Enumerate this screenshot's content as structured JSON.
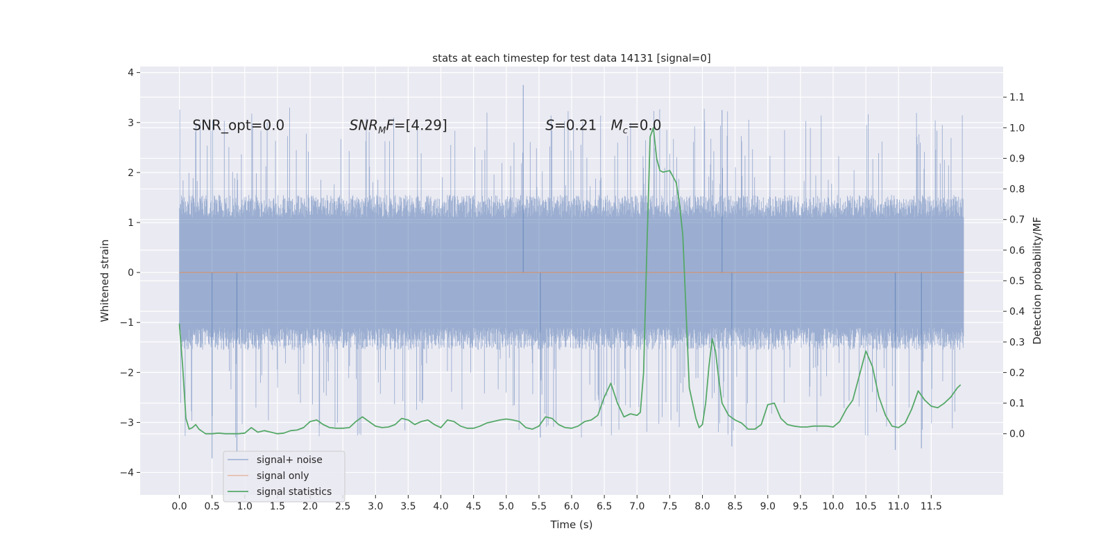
{
  "chart_data": {
    "type": "line",
    "title": "stats at each timestep for test data 14131 [signal=0]",
    "xlabel": "Time (s)",
    "ylabel_left": "Whitened strain",
    "ylabel_right": "Detection probability/MF",
    "xlim": [
      -0.6,
      12.6
    ],
    "ylim_left": [
      -4.45,
      4.12
    ],
    "ylim_right": [
      -0.2,
      1.2
    ],
    "x_ticks": [
      0.0,
      0.5,
      1.0,
      1.5,
      2.0,
      2.5,
      3.0,
      3.5,
      4.0,
      4.5,
      5.0,
      5.5,
      6.0,
      6.5,
      7.0,
      7.5,
      8.0,
      8.5,
      9.0,
      9.5,
      10.0,
      10.5,
      11.0,
      11.5
    ],
    "x_tick_labels": [
      "0.0",
      "0.5",
      "1.0",
      "1.5",
      "2.0",
      "2.5",
      "3.0",
      "3.5",
      "4.0",
      "4.5",
      "5.0",
      "5.5",
      "6.0",
      "6.5",
      "7.0",
      "7.5",
      "8.0",
      "8.5",
      "9.0",
      "9.5",
      "10.0",
      "10.5",
      "11.0",
      "11.5"
    ],
    "y_left_ticks": [
      -4,
      -3,
      -2,
      -1,
      0,
      1,
      2,
      3,
      4
    ],
    "y_left_tick_labels": [
      "−4",
      "−3",
      "−2",
      "−1",
      "0",
      "1",
      "2",
      "3",
      "4"
    ],
    "y_right_ticks": [
      0.0,
      0.1,
      0.2,
      0.3,
      0.4,
      0.5,
      0.6,
      0.7,
      0.8,
      0.9,
      1.0,
      1.1
    ],
    "y_right_tick_labels": [
      "0.0",
      "0.1",
      "0.2",
      "0.3",
      "0.4",
      "0.5",
      "0.6",
      "0.7",
      "0.8",
      "0.9",
      "1.0",
      "1.1"
    ],
    "grid": true,
    "legend_position": "lower-left",
    "background": "#EAEAF2",
    "series": [
      {
        "name": "signal+ noise",
        "axis": "left",
        "color": "#4C72B0",
        "style": "noise",
        "x_range": [
          0.0,
          12.0
        ],
        "core_amplitude": 1.1,
        "peak_max": [
          3.8,
          -3.7
        ],
        "notable_peaks": [
          [
            5.26,
            3.75
          ],
          [
            8.3,
            3.25
          ],
          [
            0.5,
            -3.72
          ],
          [
            0.88,
            -3.6
          ],
          [
            10.95,
            -3.55
          ],
          [
            11.35,
            -3.52
          ],
          [
            8.45,
            -3.48
          ],
          [
            5.52,
            -3.3
          ]
        ]
      },
      {
        "name": "signal only",
        "axis": "left",
        "color": "#DD8452",
        "x": [
          0.0,
          12.0
        ],
        "y": [
          0.0,
          0.0
        ]
      },
      {
        "name": "signal statistics",
        "axis": "right",
        "color": "#55A868",
        "x": [
          0.0,
          0.05,
          0.1,
          0.15,
          0.2,
          0.25,
          0.3,
          0.4,
          0.5,
          0.6,
          0.7,
          0.8,
          0.9,
          1.0,
          1.1,
          1.2,
          1.3,
          1.4,
          1.5,
          1.6,
          1.7,
          1.8,
          1.9,
          2.0,
          2.1,
          2.2,
          2.3,
          2.4,
          2.5,
          2.6,
          2.7,
          2.8,
          2.9,
          3.0,
          3.1,
          3.2,
          3.3,
          3.4,
          3.5,
          3.6,
          3.7,
          3.8,
          3.9,
          4.0,
          4.1,
          4.2,
          4.3,
          4.4,
          4.5,
          4.6,
          4.7,
          4.8,
          4.9,
          5.0,
          5.1,
          5.2,
          5.3,
          5.4,
          5.5,
          5.6,
          5.7,
          5.8,
          5.9,
          6.0,
          6.1,
          6.2,
          6.3,
          6.4,
          6.5,
          6.6,
          6.7,
          6.8,
          6.9,
          7.0,
          7.05,
          7.1,
          7.15,
          7.2,
          7.25,
          7.3,
          7.35,
          7.4,
          7.5,
          7.6,
          7.65,
          7.7,
          7.75,
          7.8,
          7.9,
          7.95,
          8.0,
          8.05,
          8.1,
          8.15,
          8.2,
          8.25,
          8.3,
          8.4,
          8.5,
          8.6,
          8.7,
          8.8,
          8.9,
          9.0,
          9.1,
          9.2,
          9.3,
          9.4,
          9.5,
          9.6,
          9.7,
          9.8,
          9.9,
          10.0,
          10.1,
          10.2,
          10.3,
          10.4,
          10.5,
          10.6,
          10.7,
          10.8,
          10.9,
          11.0,
          11.1,
          11.2,
          11.3,
          11.4,
          11.5,
          11.6,
          11.7,
          11.8,
          11.9,
          11.95
        ],
        "y": [
          0.36,
          0.22,
          0.05,
          0.015,
          0.02,
          0.03,
          0.015,
          0.0,
          0.0,
          0.002,
          0.0,
          0.0,
          0.0,
          0.002,
          0.02,
          0.005,
          0.01,
          0.005,
          0.0,
          0.002,
          0.01,
          0.012,
          0.02,
          0.04,
          0.045,
          0.03,
          0.02,
          0.018,
          0.018,
          0.02,
          0.04,
          0.055,
          0.04,
          0.025,
          0.02,
          0.022,
          0.03,
          0.05,
          0.045,
          0.03,
          0.04,
          0.045,
          0.03,
          0.02,
          0.045,
          0.04,
          0.025,
          0.018,
          0.018,
          0.025,
          0.035,
          0.04,
          0.045,
          0.048,
          0.045,
          0.04,
          0.02,
          0.015,
          0.025,
          0.055,
          0.05,
          0.03,
          0.02,
          0.018,
          0.025,
          0.04,
          0.045,
          0.06,
          0.12,
          0.165,
          0.1,
          0.055,
          0.065,
          0.06,
          0.07,
          0.2,
          0.6,
          0.97,
          1.0,
          0.9,
          0.86,
          0.855,
          0.86,
          0.82,
          0.75,
          0.65,
          0.4,
          0.15,
          0.05,
          0.02,
          0.03,
          0.1,
          0.22,
          0.31,
          0.27,
          0.18,
          0.1,
          0.06,
          0.045,
          0.035,
          0.015,
          0.015,
          0.03,
          0.095,
          0.1,
          0.05,
          0.03,
          0.025,
          0.022,
          0.022,
          0.025,
          0.025,
          0.025,
          0.022,
          0.04,
          0.08,
          0.11,
          0.19,
          0.27,
          0.22,
          0.12,
          0.06,
          0.025,
          0.02,
          0.035,
          0.08,
          0.14,
          0.11,
          0.09,
          0.085,
          0.1,
          0.12,
          0.15,
          0.16
        ]
      }
    ],
    "annotations": [
      {
        "x": 0.2,
        "y": 2.95,
        "base": "SNR_opt=0.0",
        "sub": "",
        "rest": ""
      },
      {
        "x": 2.6,
        "y": 2.95,
        "base": "SNR",
        "sub": "M",
        "rest": "F=[4.29]"
      },
      {
        "x": 5.6,
        "y": 2.95,
        "base": "S",
        "sub": "",
        "rest": "=0.21   "
      },
      {
        "x": 6.6,
        "y": 2.95,
        "base": "M",
        "sub": "c",
        "rest": "=0.0"
      }
    ]
  }
}
